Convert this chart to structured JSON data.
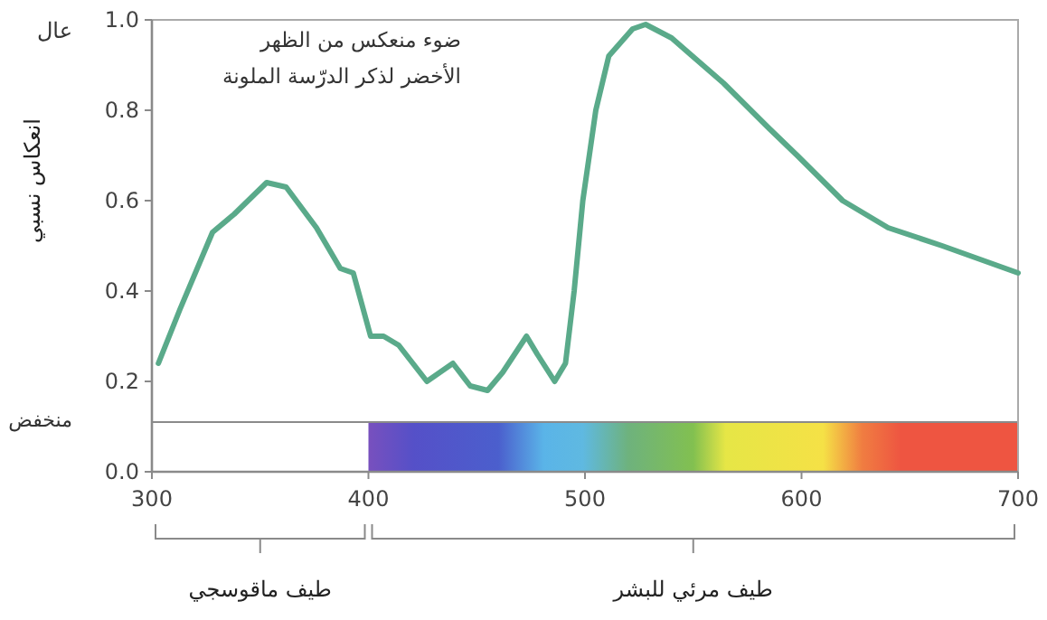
{
  "chart_data": {
    "type": "line",
    "ylabel": "انعكاس نسبي",
    "annotations": [
      "ضوء منعكس من الظهر",
      "الأخضر لذكر الدرّسة الملونة",
      "عال",
      "منخفض",
      "طيف ماقوسجي",
      "طيف مرئي للبشر"
    ],
    "xlim": [
      300,
      700
    ],
    "xticks": [
      300,
      400,
      500,
      600,
      700
    ],
    "ylim": [
      0,
      1
    ],
    "yticks": [
      {
        "value": 0,
        "label": "0.0"
      },
      0.2,
      0.4,
      0.6,
      0.8,
      {
        "value": 1,
        "label": "1.0"
      }
    ],
    "ref_lines": [
      {
        "axis": "y",
        "value": 0.11,
        "color": "#8a8a8a"
      }
    ],
    "grid": false,
    "marker": "none",
    "line_style": "solid",
    "series": [
      {
        "color": "#5aaa8a",
        "x": [
          303,
          313,
          328,
          338,
          353,
          362,
          376,
          387,
          393,
          401,
          407,
          414,
          427,
          439,
          447,
          455,
          462,
          473,
          478,
          486,
          491,
          495,
          499,
          505,
          511,
          522,
          528,
          540,
          564,
          585,
          598,
          619,
          640,
          665,
          700
        ],
        "values": [
          0.24,
          0.36,
          0.53,
          0.57,
          0.64,
          0.63,
          0.54,
          0.45,
          0.44,
          0.3,
          0.3,
          0.28,
          0.2,
          0.24,
          0.19,
          0.18,
          0.22,
          0.3,
          0.26,
          0.2,
          0.24,
          0.4,
          0.6,
          0.8,
          0.92,
          0.98,
          0.99,
          0.96,
          0.86,
          0.76,
          0.7,
          0.6,
          0.54,
          0.5,
          0.44
        ]
      }
    ]
  }
}
